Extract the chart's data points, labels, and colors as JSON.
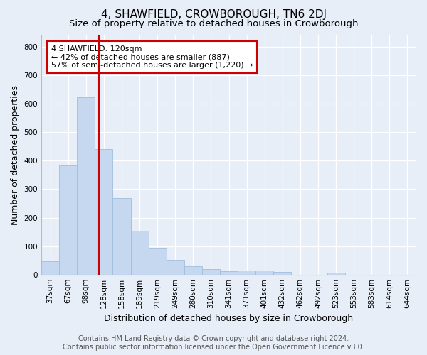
{
  "title": "4, SHAWFIELD, CROWBOROUGH, TN6 2DJ",
  "subtitle": "Size of property relative to detached houses in Crowborough",
  "xlabel": "Distribution of detached houses by size in Crowborough",
  "ylabel": "Number of detached properties",
  "categories": [
    "37sqm",
    "67sqm",
    "98sqm",
    "128sqm",
    "158sqm",
    "189sqm",
    "219sqm",
    "249sqm",
    "280sqm",
    "310sqm",
    "341sqm",
    "371sqm",
    "401sqm",
    "432sqm",
    "462sqm",
    "492sqm",
    "523sqm",
    "553sqm",
    "583sqm",
    "614sqm",
    "644sqm"
  ],
  "values": [
    46,
    384,
    622,
    441,
    268,
    155,
    95,
    52,
    28,
    18,
    11,
    13,
    15,
    8,
    0,
    0,
    7,
    0,
    0,
    0,
    0
  ],
  "bar_color": "#c5d8f0",
  "bar_edge_color": "#a0bedd",
  "vline_x": 2.73,
  "vline_color": "#cc0000",
  "annotation_text": "4 SHAWFIELD: 120sqm\n← 42% of detached houses are smaller (887)\n57% of semi-detached houses are larger (1,220) →",
  "annotation_box_color": "#ffffff",
  "annotation_box_edge_color": "#cc0000",
  "ylim": [
    0,
    840
  ],
  "yticks": [
    0,
    100,
    200,
    300,
    400,
    500,
    600,
    700,
    800
  ],
  "footer_line1": "Contains HM Land Registry data © Crown copyright and database right 2024.",
  "footer_line2": "Contains public sector information licensed under the Open Government Licence v3.0.",
  "bg_color": "#e8eef8",
  "plot_bg_color": "#e8eef8",
  "grid_color": "#ffffff",
  "title_fontsize": 11,
  "subtitle_fontsize": 9.5,
  "label_fontsize": 9,
  "tick_fontsize": 7.5,
  "footer_fontsize": 7,
  "annot_fontsize": 8
}
